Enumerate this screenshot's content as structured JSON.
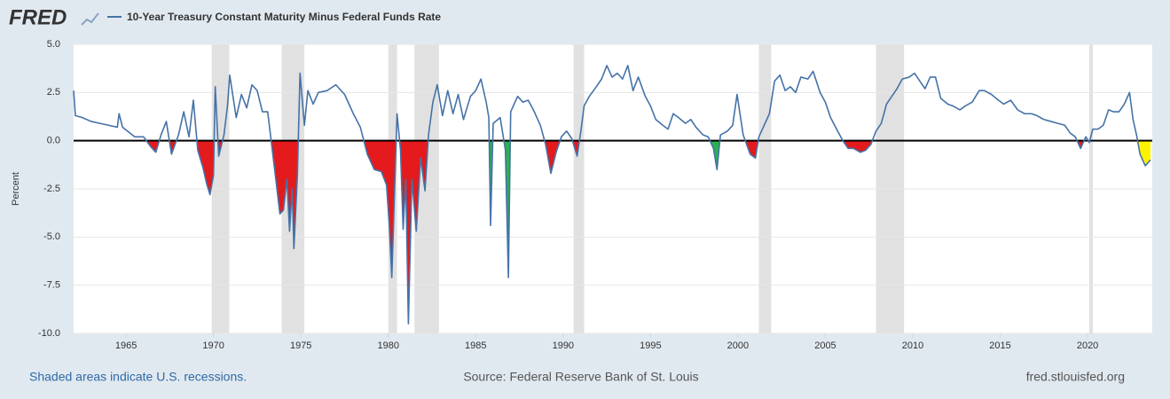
{
  "chart_data": {
    "type": "line",
    "logo": "FRED",
    "title": "10-Year Treasury Constant Maturity Minus Federal Funds Rate",
    "y_label": "Percent",
    "recession_note": "Shaded areas indicate U.S. recessions.",
    "source": "Source: Federal Reserve Bank of St. Louis",
    "url": "fred.stlouisfed.org",
    "xlim": [
      1962,
      2023.7
    ],
    "xticks": [
      1965,
      1970,
      1975,
      1980,
      1985,
      1990,
      1995,
      2000,
      2005,
      2010,
      2015,
      2020
    ],
    "ylim": [
      -10,
      5
    ],
    "yticks": [
      {
        "value": 5,
        "label": "5.0"
      },
      {
        "value": 2.5,
        "label": "2.5"
      },
      {
        "value": 0,
        "label": "0.0"
      },
      {
        "value": -2.5,
        "label": "-2.5"
      },
      {
        "value": -5,
        "label": "-5.0"
      },
      {
        "value": -7.5,
        "label": "-7.5"
      },
      {
        "value": -10,
        "label": "-10.0"
      }
    ],
    "grid": true,
    "x": [
      1962.0,
      1962.1,
      1962.5,
      1963.0,
      1963.5,
      1964.0,
      1964.5,
      1964.6,
      1964.8,
      1965.5,
      1966.0,
      1966.4,
      1966.7,
      1967.0,
      1967.3,
      1967.6,
      1968.0,
      1968.3,
      1968.6,
      1968.85,
      1969.1,
      1969.4,
      1969.6,
      1969.8,
      1970.0,
      1970.1,
      1970.3,
      1970.6,
      1970.8,
      1970.93,
      1971.3,
      1971.6,
      1971.9,
      1972.2,
      1972.5,
      1972.8,
      1973.1,
      1973.3,
      1973.5,
      1973.8,
      1974.0,
      1974.2,
      1974.35,
      1974.5,
      1974.6,
      1974.8,
      1974.95,
      1975.2,
      1975.4,
      1975.7,
      1976.0,
      1976.5,
      1977.0,
      1977.5,
      1978.0,
      1978.4,
      1978.8,
      1979.2,
      1979.6,
      1979.9,
      1980.05,
      1980.2,
      1980.5,
      1980.7,
      1980.85,
      1981.0,
      1981.15,
      1981.35,
      1981.6,
      1981.85,
      1982.1,
      1982.3,
      1982.55,
      1982.8,
      1983.1,
      1983.4,
      1983.7,
      1984.0,
      1984.3,
      1984.7,
      1985.0,
      1985.3,
      1985.6,
      1985.75,
      1985.85,
      1986.0,
      1986.4,
      1986.7,
      1986.87,
      1987.0,
      1987.4,
      1987.7,
      1988.0,
      1988.3,
      1988.7,
      1989.0,
      1989.3,
      1989.6,
      1989.9,
      1990.2,
      1990.5,
      1990.8,
      1991.0,
      1991.2,
      1991.5,
      1991.9,
      1992.2,
      1992.5,
      1992.8,
      1993.1,
      1993.4,
      1993.7,
      1994.0,
      1994.3,
      1994.7,
      1995.0,
      1995.3,
      1995.7,
      1996.0,
      1996.3,
      1996.6,
      1997.0,
      1997.3,
      1997.6,
      1998.0,
      1998.3,
      1998.6,
      1998.8,
      1999.0,
      1999.4,
      1999.7,
      1999.95,
      2000.3,
      2000.7,
      2001.0,
      2001.2,
      2001.5,
      2001.8,
      2002.1,
      2002.4,
      2002.7,
      2003.0,
      2003.3,
      2003.6,
      2004.0,
      2004.3,
      2004.7,
      2005.0,
      2005.3,
      2005.7,
      2006.0,
      2006.3,
      2006.6,
      2007.0,
      2007.3,
      2007.6,
      2007.9,
      2008.2,
      2008.5,
      2008.8,
      2009.1,
      2009.4,
      2009.8,
      2010.1,
      2010.4,
      2010.7,
      2011.0,
      2011.3,
      2011.6,
      2012.0,
      2012.3,
      2012.7,
      2013.0,
      2013.4,
      2013.8,
      2014.1,
      2014.5,
      2014.9,
      2015.2,
      2015.6,
      2016.0,
      2016.4,
      2016.8,
      2017.1,
      2017.5,
      2017.9,
      2018.3,
      2018.7,
      2019.0,
      2019.3,
      2019.6,
      2019.9,
      2020.1,
      2020.3,
      2020.6,
      2020.9,
      2021.2,
      2021.5,
      2021.8,
      2022.1,
      2022.4,
      2022.6,
      2022.8,
      2023.0,
      2023.3,
      2023.6
    ],
    "series": [
      {
        "name": "10-Year Treasury Constant Maturity Minus Federal Funds Rate",
        "color": "#4572a7",
        "values": [
          2.6,
          1.3,
          1.2,
          1.0,
          0.9,
          0.8,
          0.7,
          1.4,
          0.7,
          0.2,
          0.2,
          -0.3,
          -0.6,
          0.3,
          1.0,
          -0.7,
          0.3,
          1.5,
          0.2,
          2.1,
          -0.5,
          -1.4,
          -2.2,
          -2.8,
          -1.8,
          2.8,
          -0.8,
          0.3,
          1.8,
          3.4,
          1.2,
          2.4,
          1.7,
          2.9,
          2.6,
          1.5,
          1.5,
          0.0,
          -1.5,
          -3.8,
          -3.6,
          -2.0,
          -4.7,
          -2.5,
          -5.6,
          -1.8,
          3.5,
          0.8,
          2.6,
          1.9,
          2.5,
          2.6,
          2.9,
          2.4,
          1.4,
          0.7,
          -0.7,
          -1.5,
          -1.6,
          -2.3,
          -4.3,
          -7.1,
          1.4,
          -0.5,
          -4.6,
          -2.0,
          -9.5,
          -2.0,
          -4.7,
          -0.9,
          -2.6,
          0.3,
          2.0,
          2.9,
          1.3,
          2.6,
          1.4,
          2.4,
          1.1,
          2.3,
          2.6,
          3.2,
          2.0,
          1.2,
          -4.4,
          0.9,
          1.2,
          -0.5,
          -7.1,
          1.5,
          2.3,
          2.0,
          2.1,
          1.6,
          0.8,
          -0.2,
          -1.7,
          -0.6,
          0.2,
          0.5,
          0.1,
          -0.8,
          0.4,
          1.8,
          2.3,
          2.8,
          3.2,
          3.9,
          3.3,
          3.5,
          3.2,
          3.9,
          2.6,
          3.3,
          2.3,
          1.8,
          1.1,
          0.8,
          0.6,
          1.4,
          1.2,
          0.9,
          1.1,
          0.7,
          0.3,
          0.2,
          -0.4,
          -1.5,
          0.3,
          0.5,
          0.8,
          2.4,
          0.3,
          -0.7,
          -0.9,
          0.2,
          0.8,
          1.4,
          3.1,
          3.4,
          2.6,
          2.8,
          2.5,
          3.3,
          3.2,
          3.6,
          2.5,
          2.0,
          1.2,
          0.5,
          0.0,
          -0.4,
          -0.4,
          -0.6,
          -0.5,
          -0.2,
          0.5,
          0.9,
          1.9,
          2.3,
          2.7,
          3.2,
          3.3,
          3.5,
          3.1,
          2.7,
          3.3,
          3.3,
          2.2,
          1.9,
          1.8,
          1.6,
          1.8,
          2.0,
          2.6,
          2.6,
          2.4,
          2.1,
          1.9,
          2.1,
          1.6,
          1.4,
          1.4,
          1.3,
          1.1,
          1.0,
          0.9,
          0.8,
          0.4,
          0.2,
          -0.4,
          0.2,
          -0.1,
          0.6,
          0.6,
          0.8,
          1.6,
          1.5,
          1.5,
          1.9,
          2.5,
          1.1,
          0.3,
          -0.7,
          -1.3,
          -1.0
        ]
      }
    ],
    "negative_fill_color": "#e41a1c",
    "fill_exceptions": [
      {
        "start": 1985.7,
        "end": 1987.1,
        "color": "#2bb24c"
      },
      {
        "start": 1998.4,
        "end": 1999.0,
        "color": "#2bb24c"
      },
      {
        "start": 2022.7,
        "end": 2023.7,
        "color": "#fff200"
      }
    ],
    "recession_color": "#e1e1e1",
    "recessions": [
      {
        "start": 1969.9,
        "end": 1970.9
      },
      {
        "start": 1973.9,
        "end": 1975.2
      },
      {
        "start": 1980.0,
        "end": 1980.5
      },
      {
        "start": 1981.5,
        "end": 1982.9
      },
      {
        "start": 1990.6,
        "end": 1991.2
      },
      {
        "start": 2001.2,
        "end": 2001.9
      },
      {
        "start": 2007.9,
        "end": 2009.5
      },
      {
        "start": 2020.1,
        "end": 2020.3
      }
    ]
  }
}
